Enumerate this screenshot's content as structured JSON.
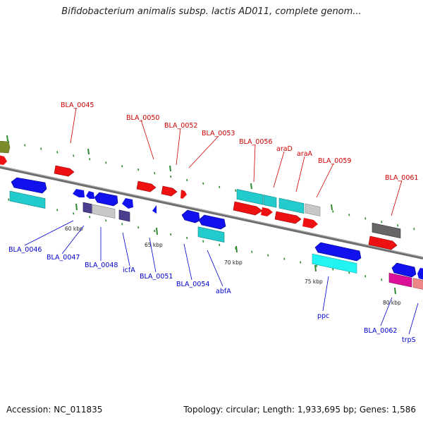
{
  "title": "Bifidobacterium animalis subsp. lactis AD011, complete genom...",
  "footer": {
    "accession": "Accession: NC_011835",
    "summary": "Topology: circular; Length: 1,933,695 bp; Genes: 1,586"
  },
  "colors": {
    "background": "#ffffff",
    "backbone": "#7f7f7f",
    "tick": "#2f8a2f",
    "top_label": "#cc0000",
    "bottom_label": "#0000cc",
    "red_gene": "#ee1111",
    "blue_gene": "#1111ee",
    "cyan_gene": "#22cccc",
    "gray_gene": "#bbbbbb",
    "darkgray_gene": "#666666",
    "purple_gene": "#4a3f8f",
    "magenta_gene": "#dd1199",
    "pink_gene": "#ee8888",
    "olive_gene": "#7a8c2a"
  },
  "ticks": [
    "60 kbp",
    "65 kbp",
    "70 kbp",
    "75 kbp",
    "80 kbp"
  ],
  "top_labels": [
    "BLA_0045",
    "BLA_0050",
    "BLA_0052",
    "BLA_0053",
    "BLA_0056",
    "araD",
    "araA",
    "BLA_0059",
    "BLA_0061"
  ],
  "bottom_labels": [
    "BLA_0046",
    "BLA_0047",
    "BLA_0048",
    "icfA",
    "BLA_0051",
    "BLA_0054",
    "abfA",
    "ppc",
    "BLA_0062",
    "trpS"
  ]
}
